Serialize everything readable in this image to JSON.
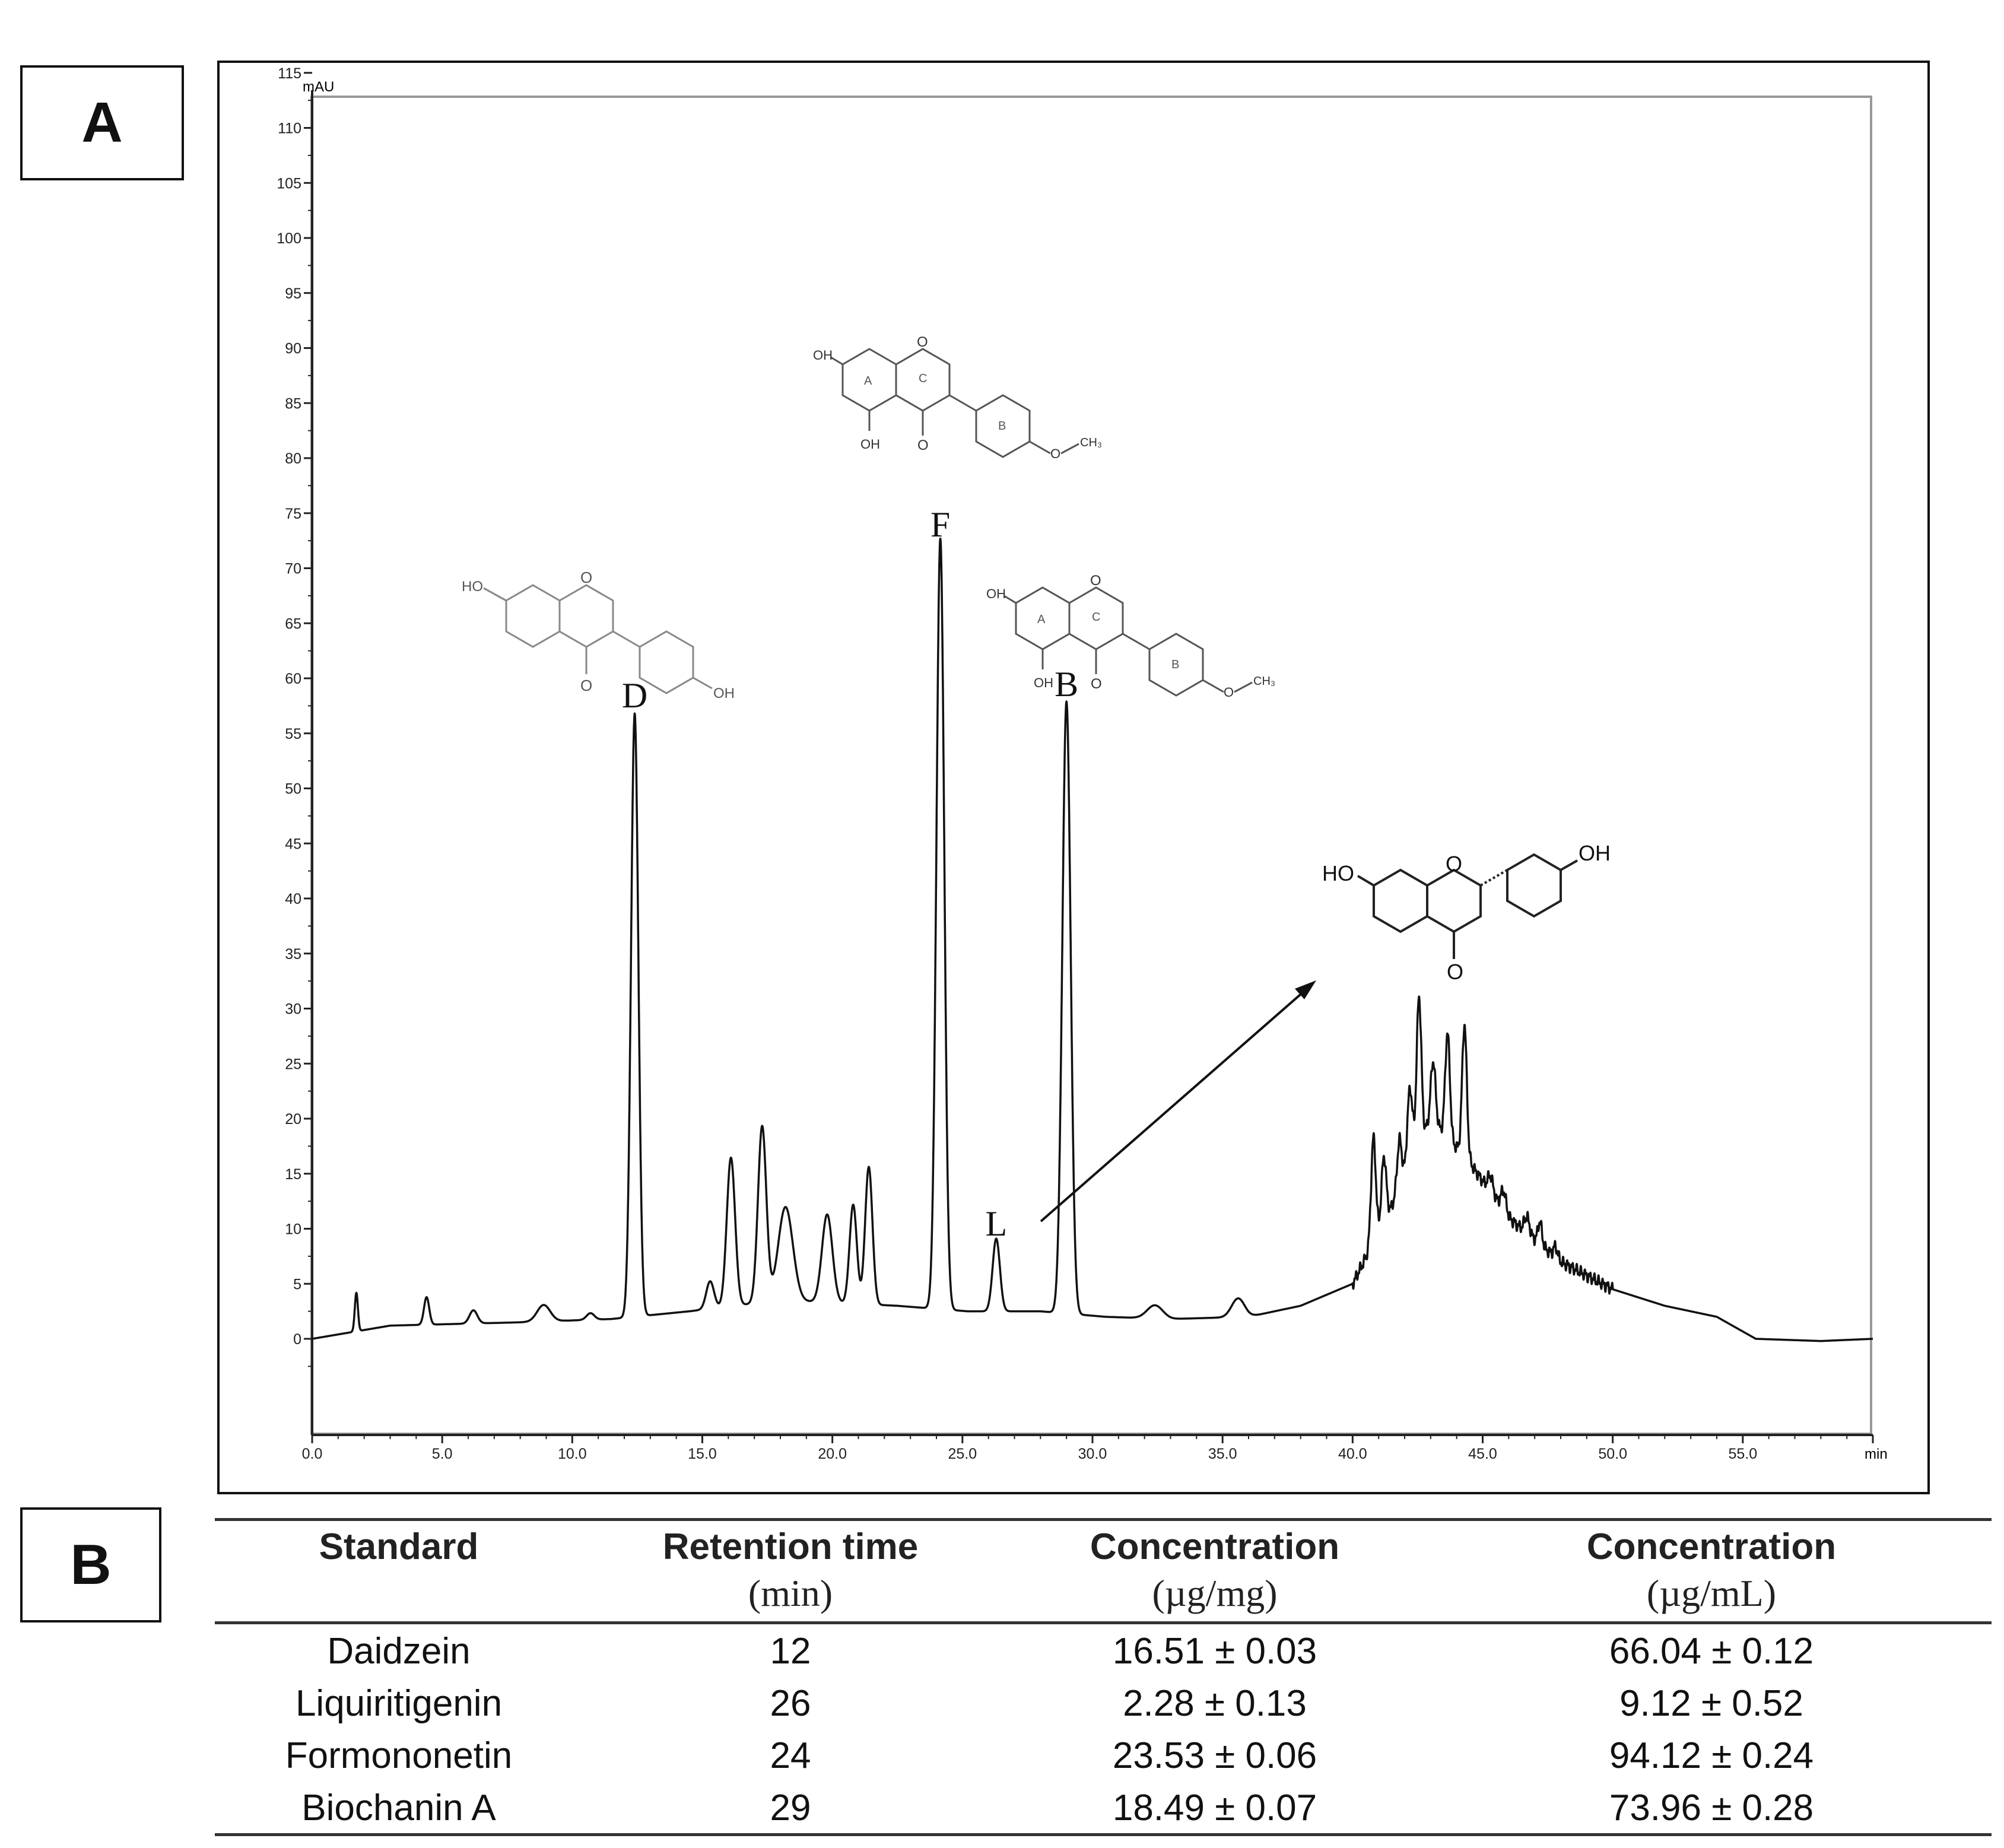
{
  "panels": {
    "a_label": "A",
    "b_label": "B"
  },
  "chart_data": {
    "type": "line",
    "title": "",
    "xlabel": "min",
    "ylabel": "mAU",
    "xlim": [
      0,
      60
    ],
    "ylim": [
      -4,
      116
    ],
    "x_ticks": [
      0,
      5,
      10,
      15,
      20,
      25,
      30,
      35,
      40,
      45,
      50,
      55
    ],
    "x_tick_labels": [
      "0.0",
      "5.0",
      "10.0",
      "15.0",
      "20.0",
      "25.0",
      "30.0",
      "35.0",
      "40.0",
      "45.0",
      "50.0",
      "55.0"
    ],
    "y_ticks": [
      0,
      5,
      10,
      15,
      20,
      25,
      30,
      35,
      40,
      45,
      50,
      55,
      60,
      65,
      70,
      75,
      80,
      85,
      90,
      95,
      100,
      105,
      110,
      115
    ],
    "y_tick_labels": [
      "0",
      "5",
      "10",
      "15",
      "20",
      "25",
      "30",
      "35",
      "40",
      "45",
      "50",
      "55",
      "60",
      "65",
      "70",
      "75",
      "80",
      "85",
      "90",
      "95",
      "100",
      "105",
      "110",
      "115"
    ],
    "baseline": [
      [
        0,
        0
      ],
      [
        1.5,
        0.6
      ],
      [
        3,
        1.2
      ],
      [
        8,
        1.5
      ],
      [
        11.5,
        1.8
      ],
      [
        14.5,
        2.5
      ],
      [
        18,
        3.5
      ],
      [
        22.5,
        3.0
      ],
      [
        25.2,
        2.5
      ],
      [
        28,
        2.5
      ],
      [
        30.5,
        2.0
      ],
      [
        33,
        1.8
      ],
      [
        36,
        2.0
      ],
      [
        38,
        3.0
      ],
      [
        40,
        5.0
      ],
      [
        41.5,
        12.0
      ],
      [
        43,
        20.0
      ],
      [
        44.5,
        16.0
      ],
      [
        46,
        11.0
      ],
      [
        48,
        7.0
      ],
      [
        50,
        4.5
      ],
      [
        52,
        3.0
      ],
      [
        54,
        2.0
      ],
      [
        55.5,
        0
      ],
      [
        58,
        -0.2
      ],
      [
        60,
        0
      ]
    ],
    "peaks": [
      {
        "rt": 1.7,
        "height": 3.5,
        "width": 0.06
      },
      {
        "rt": 4.4,
        "height": 2.5,
        "width": 0.1
      },
      {
        "rt": 6.2,
        "height": 1.2,
        "width": 0.15
      },
      {
        "rt": 8.9,
        "height": 1.5,
        "width": 0.25
      },
      {
        "rt": 10.7,
        "height": 0.6,
        "width": 0.15
      },
      {
        "rt": 12.4,
        "height": 54.8,
        "width": 0.14
      },
      {
        "rt": 15.3,
        "height": 2.5,
        "width": 0.15
      },
      {
        "rt": 16.1,
        "height": 13.5,
        "width": 0.16
      },
      {
        "rt": 17.3,
        "height": 16.0,
        "width": 0.16
      },
      {
        "rt": 18.2,
        "height": 8.5,
        "width": 0.28
      },
      {
        "rt": 19.8,
        "height": 8.0,
        "width": 0.2
      },
      {
        "rt": 20.8,
        "height": 9.0,
        "width": 0.14
      },
      {
        "rt": 21.4,
        "height": 12.5,
        "width": 0.14
      },
      {
        "rt": 24.15,
        "height": 70.0,
        "width": 0.15
      },
      {
        "rt": 26.3,
        "height": 6.6,
        "width": 0.14
      },
      {
        "rt": 29.0,
        "height": 55.6,
        "width": 0.16
      },
      {
        "rt": 32.4,
        "height": 1.2,
        "width": 0.3
      },
      {
        "rt": 35.6,
        "height": 1.7,
        "width": 0.25
      },
      {
        "rt": 40.8,
        "height": 9.5,
        "width": 0.09
      },
      {
        "rt": 41.2,
        "height": 6.0,
        "width": 0.09
      },
      {
        "rt": 41.8,
        "height": 4.5,
        "width": 0.09
      },
      {
        "rt": 42.2,
        "height": 7.0,
        "width": 0.1
      },
      {
        "rt": 42.55,
        "height": 13.5,
        "width": 0.09
      },
      {
        "rt": 43.1,
        "height": 5.5,
        "width": 0.09
      },
      {
        "rt": 43.65,
        "height": 9.5,
        "width": 0.09
      },
      {
        "rt": 44.3,
        "height": 12.0,
        "width": 0.09
      },
      {
        "rt": 45.3,
        "height": 1.5,
        "width": 0.1
      },
      {
        "rt": 45.8,
        "height": 1.8,
        "width": 0.1
      },
      {
        "rt": 46.7,
        "height": 1.5,
        "width": 0.1
      },
      {
        "rt": 47.2,
        "height": 2.0,
        "width": 0.08
      },
      {
        "rt": 47.8,
        "height": 1.0,
        "width": 0.08
      }
    ],
    "peak_labels": [
      {
        "text": "D",
        "rt": 12.4,
        "value": 55
      },
      {
        "text": "F",
        "rt": 24.15,
        "value": 70.5
      },
      {
        "text": "L",
        "rt": 26.3,
        "value": 7
      },
      {
        "text": "B",
        "rt": 29.0,
        "value": 56
      }
    ],
    "structures": {
      "daidzein": {
        "oh1": "HO",
        "o": "O",
        "oh2": "OH",
        "keto": "O"
      },
      "biochanin_top": {
        "oh1": "OH",
        "oh2": "OH",
        "o": "O",
        "keto": "O",
        "ring_a": "A",
        "ring_b": "B",
        "ring_c": "C",
        "methoxy": "CH₃"
      },
      "biochanin_mid": {
        "oh1": "OH",
        "oh2": "OH",
        "o": "O",
        "keto": "O",
        "ring_a": "A",
        "ring_b": "B",
        "ring_c": "C",
        "methoxy": "CH₃"
      },
      "liquiritigenin": {
        "ho": "HO",
        "o": "O",
        "oh": "OH",
        "keto": "O"
      }
    }
  },
  "table": {
    "headers": [
      {
        "title": "Standard",
        "unit": ""
      },
      {
        "title": "Retention time",
        "unit": "(min)"
      },
      {
        "title": "Concentration",
        "unit": "(µg/mg)"
      },
      {
        "title": "Concentration",
        "unit": "(µg/mL)"
      }
    ],
    "rows": [
      [
        "Daidzein",
        "12",
        "16.51 ± 0.03",
        "66.04 ± 0.12"
      ],
      [
        "Liquiritigenin",
        "26",
        "2.28 ± 0.13",
        "9.12 ± 0.52"
      ],
      [
        "Formononetin",
        "24",
        "23.53 ± 0.06",
        "94.12 ± 0.24"
      ],
      [
        "Biochanin A",
        "29",
        "18.49 ± 0.07",
        "73.96 ± 0.28"
      ]
    ]
  }
}
